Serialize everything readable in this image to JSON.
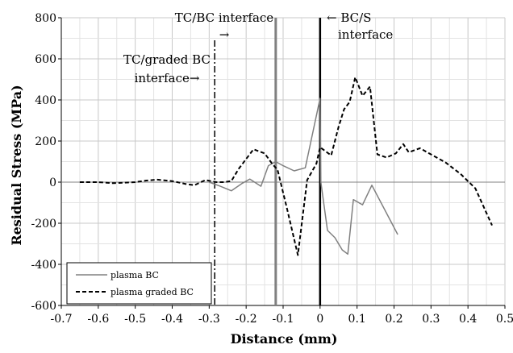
{
  "chart_data": {
    "type": "line",
    "xlabel": "Distance (mm)",
    "ylabel": "Residual Stress  (MPa)",
    "xlim": [
      -0.7,
      0.5
    ],
    "ylim": [
      -600,
      800
    ],
    "x_ticks": [
      "-0.7",
      "-0.6",
      "-0.5",
      "-0.4",
      "-0.3",
      "-0.2",
      "-0.1",
      "0",
      "0.1",
      "0.2",
      "0.3",
      "0.4",
      "0.5"
    ],
    "y_ticks": [
      "-600",
      "-400",
      "-200",
      "0",
      "200",
      "400",
      "600",
      "800"
    ],
    "grid": true,
    "legend_position": "bottom-left",
    "series": [
      {
        "name": "plasma BC",
        "style": "solid",
        "color": "#808080",
        "x": [
          -0.3,
          -0.27,
          -0.24,
          -0.21,
          -0.19,
          -0.16,
          -0.14,
          -0.12,
          -0.1,
          -0.07,
          -0.04,
          0.0,
          0.002,
          0.02,
          0.04,
          0.06,
          0.075,
          0.09,
          0.115,
          0.14,
          0.21
        ],
        "y": [
          0,
          -20,
          -42,
          -5,
          15,
          -20,
          80,
          100,
          80,
          55,
          70,
          408,
          0,
          -235,
          -270,
          -330,
          -350,
          -85,
          -110,
          -15,
          -255
        ]
      },
      {
        "name": "plasma graded BC",
        "style": "dashed",
        "color": "#000000",
        "x": [
          -0.65,
          -0.6,
          -0.56,
          -0.5,
          -0.47,
          -0.44,
          -0.4,
          -0.36,
          -0.34,
          -0.31,
          -0.28,
          -0.26,
          -0.24,
          -0.22,
          -0.18,
          -0.15,
          -0.13,
          -0.115,
          -0.09,
          -0.06,
          -0.035,
          -0.01,
          0.0,
          0.015,
          0.03,
          0.05,
          0.065,
          0.08,
          0.095,
          0.115,
          0.135,
          0.155,
          0.18,
          0.205,
          0.225,
          0.24,
          0.27,
          0.305,
          0.34,
          0.38,
          0.42,
          0.465
        ],
        "y": [
          0,
          0,
          -5,
          0,
          8,
          12,
          5,
          -10,
          -15,
          10,
          0,
          0,
          5,
          65,
          160,
          140,
          90,
          60,
          -125,
          -355,
          10,
          90,
          170,
          150,
          130,
          270,
          355,
          390,
          510,
          420,
          465,
          135,
          120,
          140,
          185,
          145,
          165,
          130,
          95,
          40,
          -30,
          -210
        ]
      }
    ],
    "vertical_lines": [
      {
        "x": -0.285,
        "style": "dash-dot",
        "label": "TC/graded BC interface→"
      },
      {
        "x": -0.12,
        "style": "solid-gray",
        "label": "TC/BC interface →"
      },
      {
        "x": 0.0,
        "style": "solid-black",
        "label": "← BC/S interface"
      }
    ]
  },
  "annotations": {
    "tc_graded_line1": "TC/graded BC",
    "tc_graded_line2": "interface→",
    "tc_bc_line1": "TC/BC interface",
    "tc_bc_line2": "→",
    "bcs_line1": "← BC/S",
    "bcs_line2": "interface"
  }
}
